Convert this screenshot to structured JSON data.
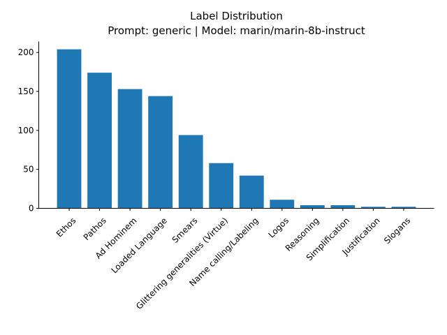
{
  "chart_data": {
    "type": "bar",
    "title": "Label Distribution",
    "subtitle": "Prompt: generic | Model: marin/marin-8b-instruct",
    "xlabel": "",
    "ylabel": "",
    "categories": [
      "Ethos",
      "Pathos",
      "Ad Hominem",
      "Loaded Language",
      "Smears",
      "Glittering generalities (Virtue)",
      "Name calling/Labeling",
      "Logos",
      "Reasoning",
      "Simplification",
      "Justification",
      "Slogans"
    ],
    "values": [
      204,
      174,
      153,
      144,
      94,
      58,
      42,
      11,
      4,
      4,
      2,
      2
    ],
    "ylim": [
      0,
      214
    ],
    "yticks": [
      0,
      50,
      100,
      150,
      200
    ],
    "bar_color": "#1f77b4",
    "grid": false
  }
}
